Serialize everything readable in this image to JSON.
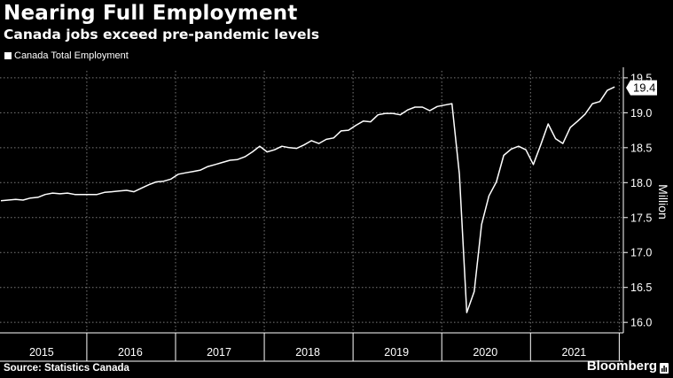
{
  "title": "Nearing Full Employment",
  "subtitle": "Canada jobs exceed pre-pandemic levels",
  "legend_label": "Canada Total Employment",
  "source": "Source: Statistics Canada",
  "brand": "Bloomberg",
  "last_value_label": "19.4",
  "colors": {
    "background": "#000000",
    "line": "#ffffff",
    "grid": "#7a7a7a"
  },
  "chart_data": {
    "type": "line",
    "title": "Nearing Full Employment",
    "subtitle": "Canada jobs exceed pre-pandemic levels",
    "ylabel": "Million",
    "ylim": [
      15.85,
      19.6
    ],
    "y_ticks": [
      16.0,
      16.5,
      17.0,
      17.5,
      18.0,
      18.5,
      19.0,
      19.5
    ],
    "y_tick_labels": [
      "16.0",
      "16.5",
      "17.0",
      "17.5",
      "18.0",
      "18.5",
      "19.0",
      "19.5"
    ],
    "x_tick_labels": [
      "2015",
      "2016",
      "2017",
      "2018",
      "2019",
      "2020",
      "2021"
    ],
    "grid": true,
    "legend_position": "top-left",
    "series": [
      {
        "name": "Canada Total Employment",
        "x": [
          "2015-01",
          "2015-02",
          "2015-03",
          "2015-04",
          "2015-05",
          "2015-06",
          "2015-07",
          "2015-08",
          "2015-09",
          "2015-10",
          "2015-11",
          "2015-12",
          "2016-01",
          "2016-02",
          "2016-03",
          "2016-04",
          "2016-05",
          "2016-06",
          "2016-07",
          "2016-08",
          "2016-09",
          "2016-10",
          "2016-11",
          "2016-12",
          "2017-01",
          "2017-02",
          "2017-03",
          "2017-04",
          "2017-05",
          "2017-06",
          "2017-07",
          "2017-08",
          "2017-09",
          "2017-10",
          "2017-11",
          "2017-12",
          "2018-01",
          "2018-02",
          "2018-03",
          "2018-04",
          "2018-05",
          "2018-06",
          "2018-07",
          "2018-08",
          "2018-09",
          "2018-10",
          "2018-11",
          "2018-12",
          "2019-01",
          "2019-02",
          "2019-03",
          "2019-04",
          "2019-05",
          "2019-06",
          "2019-07",
          "2019-08",
          "2019-09",
          "2019-10",
          "2019-11",
          "2019-12",
          "2020-01",
          "2020-02",
          "2020-03",
          "2020-04",
          "2020-05",
          "2020-06",
          "2020-07",
          "2020-08",
          "2020-09",
          "2020-10",
          "2020-11",
          "2020-12",
          "2021-01",
          "2021-02",
          "2021-03",
          "2021-04",
          "2021-05",
          "2021-06",
          "2021-07",
          "2021-08",
          "2021-09",
          "2021-10",
          "2021-11",
          "2021-12"
        ],
        "values": [
          17.74,
          17.75,
          17.76,
          17.75,
          17.78,
          17.79,
          17.83,
          17.85,
          17.84,
          17.85,
          17.83,
          17.83,
          17.83,
          17.83,
          17.86,
          17.87,
          17.88,
          17.89,
          17.87,
          17.92,
          17.97,
          18.01,
          18.02,
          18.05,
          18.12,
          18.14,
          18.16,
          18.18,
          18.23,
          18.26,
          18.29,
          18.32,
          18.33,
          18.37,
          18.44,
          18.52,
          18.44,
          18.47,
          18.52,
          18.5,
          18.49,
          18.54,
          18.6,
          18.56,
          18.62,
          18.64,
          18.74,
          18.75,
          18.82,
          18.88,
          18.87,
          18.97,
          18.99,
          18.99,
          18.97,
          19.04,
          19.08,
          19.08,
          19.03,
          19.09,
          19.11,
          19.13,
          18.12,
          16.14,
          16.44,
          17.4,
          17.81,
          18.01,
          18.39,
          18.48,
          18.52,
          18.47,
          18.26,
          18.54,
          18.84,
          18.63,
          18.56,
          18.79,
          18.88,
          18.98,
          19.13,
          19.16,
          19.32,
          19.37
        ]
      }
    ]
  }
}
